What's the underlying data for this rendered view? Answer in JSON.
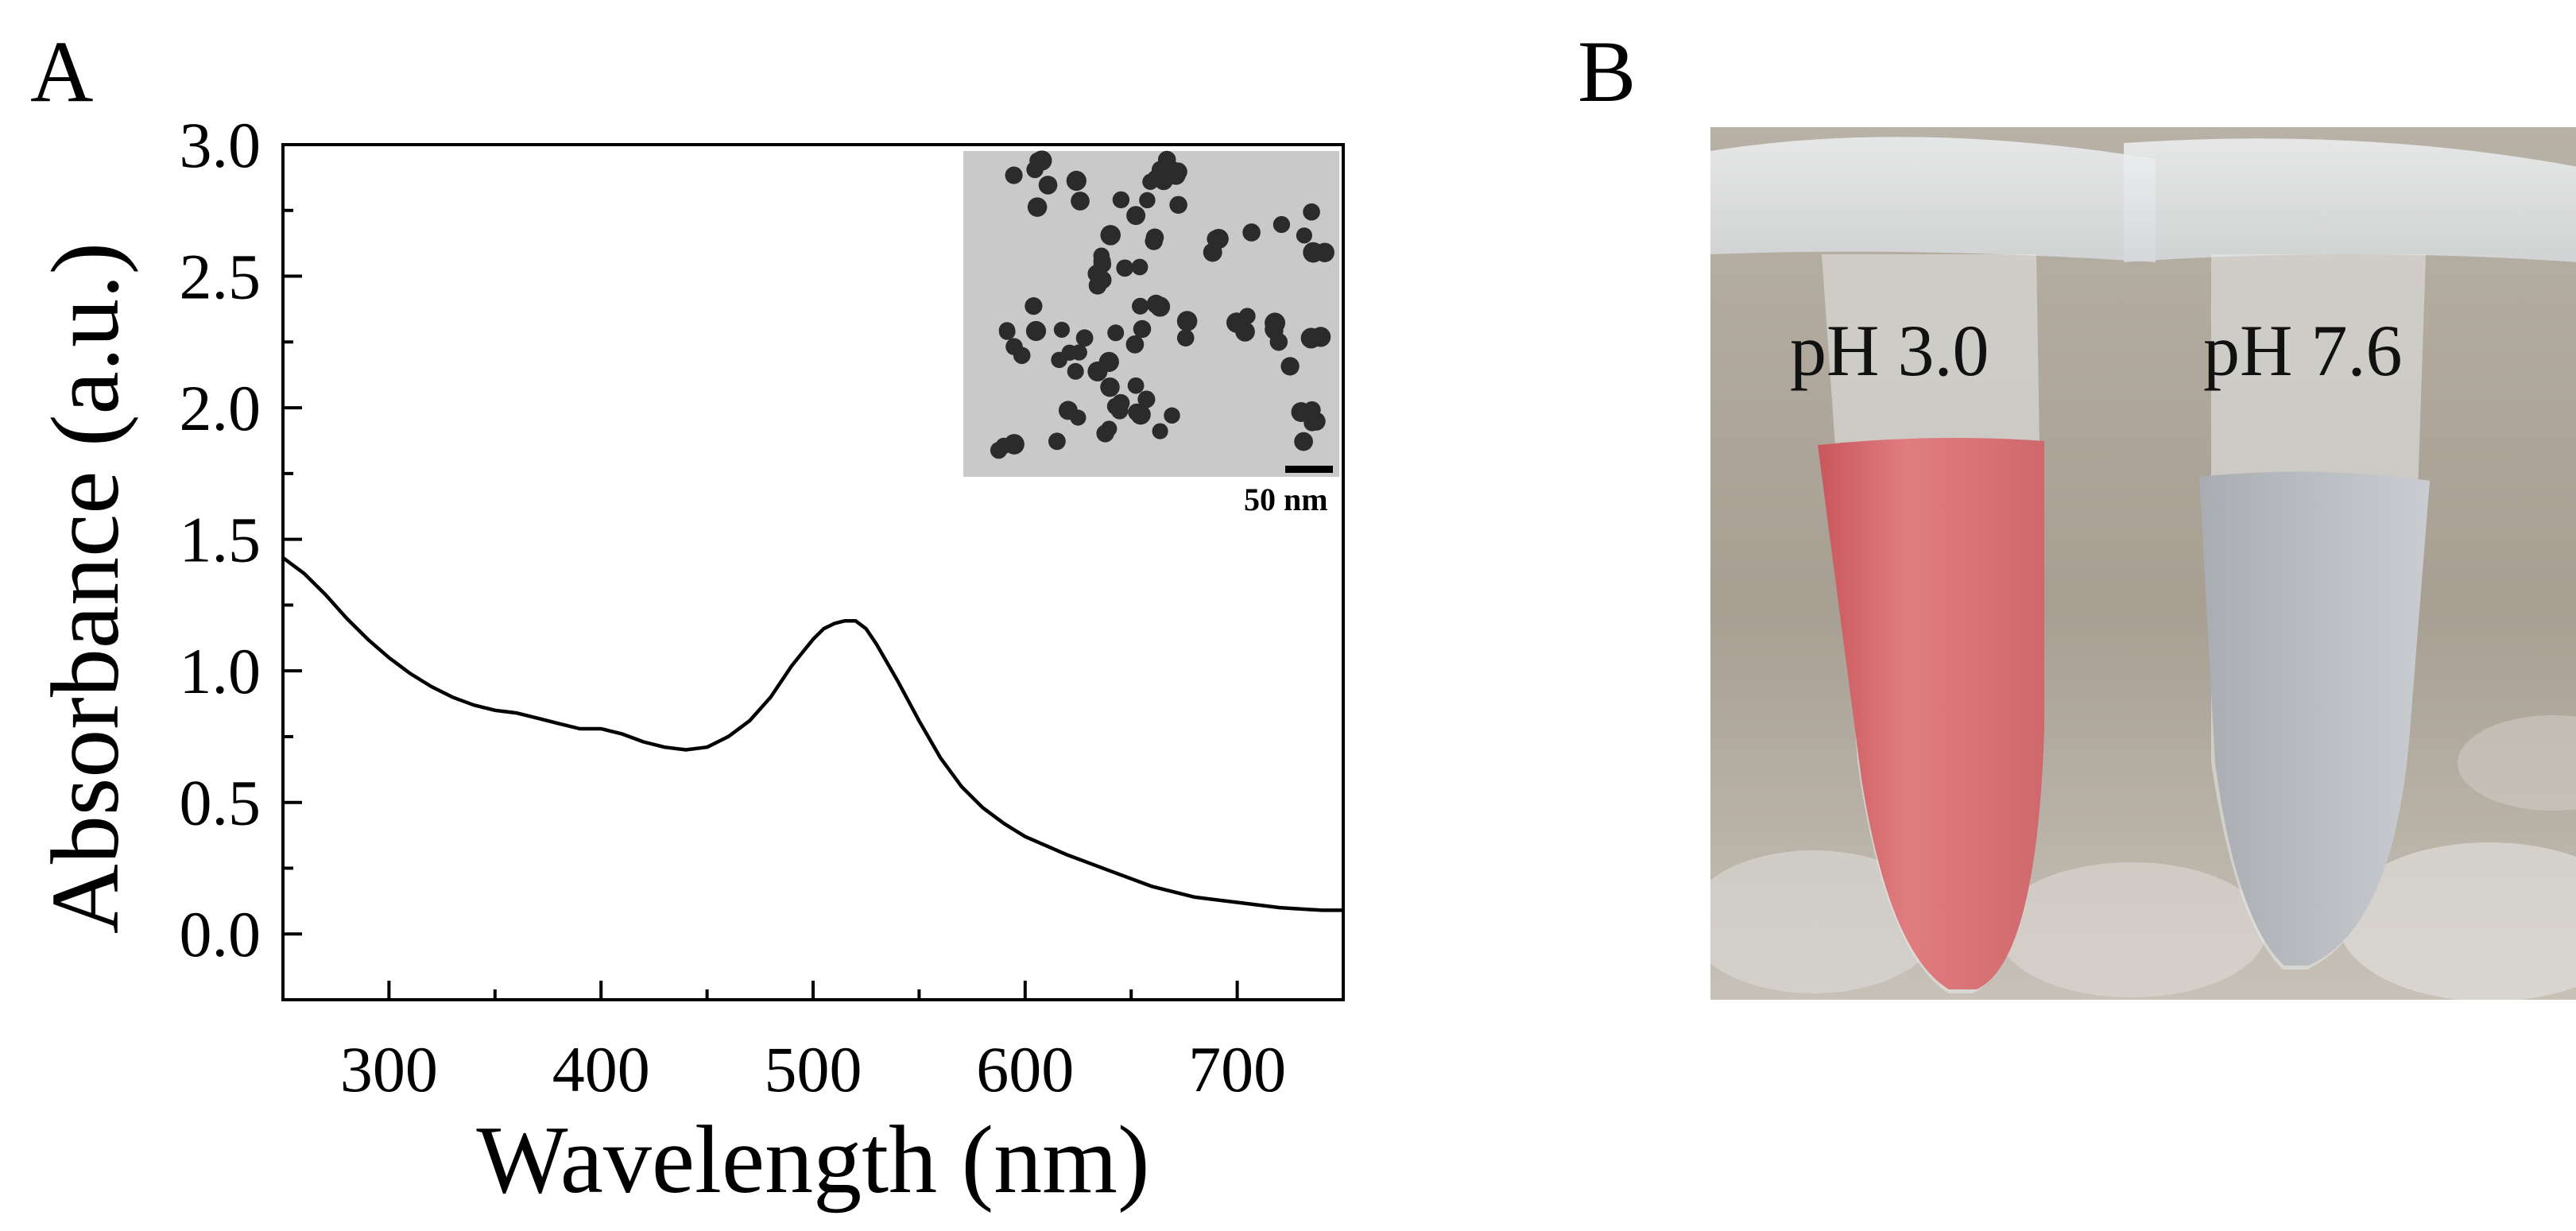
{
  "panels": {
    "a_label": "A",
    "b_label": "B"
  },
  "chart_data": {
    "type": "line",
    "title": "",
    "xlabel": "Wavelength (nm)",
    "ylabel": "Absorbance (a.u.)",
    "xlim": [
      250,
      750
    ],
    "ylim": [
      -0.25,
      3.0
    ],
    "xticks": [
      300,
      400,
      500,
      600,
      700
    ],
    "yticks": [
      0.0,
      0.5,
      1.0,
      1.5,
      2.0,
      2.5,
      3.0
    ],
    "ytick_labels": [
      "0.0",
      "0.5",
      "1.0",
      "1.5",
      "2.0",
      "2.5",
      "3.0"
    ],
    "grid": false,
    "legend": "none",
    "series": [
      {
        "color": "#000000",
        "x": [
          250,
          260,
          270,
          280,
          290,
          300,
          310,
          320,
          330,
          340,
          350,
          360,
          370,
          380,
          390,
          400,
          410,
          420,
          430,
          440,
          450,
          460,
          470,
          480,
          490,
          500,
          505,
          510,
          515,
          520,
          525,
          530,
          540,
          550,
          560,
          570,
          580,
          590,
          600,
          620,
          640,
          660,
          680,
          700,
          720,
          740,
          750
        ],
        "y": [
          1.43,
          1.37,
          1.29,
          1.2,
          1.12,
          1.05,
          0.99,
          0.94,
          0.9,
          0.87,
          0.85,
          0.84,
          0.82,
          0.8,
          0.78,
          0.78,
          0.76,
          0.73,
          0.71,
          0.7,
          0.71,
          0.75,
          0.81,
          0.9,
          1.02,
          1.12,
          1.16,
          1.18,
          1.19,
          1.19,
          1.16,
          1.1,
          0.96,
          0.81,
          0.67,
          0.56,
          0.48,
          0.42,
          0.37,
          0.3,
          0.24,
          0.18,
          0.14,
          0.12,
          0.1,
          0.09,
          0.09
        ]
      }
    ],
    "inset": {
      "type": "TEM micrograph",
      "scale_bar_label": "50 nm"
    }
  },
  "photo": {
    "type": "photograph of two microcentrifuge tubes",
    "tube_left_label": "pH 3.0",
    "tube_right_label": "pH 7.6",
    "tube_left_color": "#e07d80",
    "tube_right_color": "#b8bbbf"
  }
}
